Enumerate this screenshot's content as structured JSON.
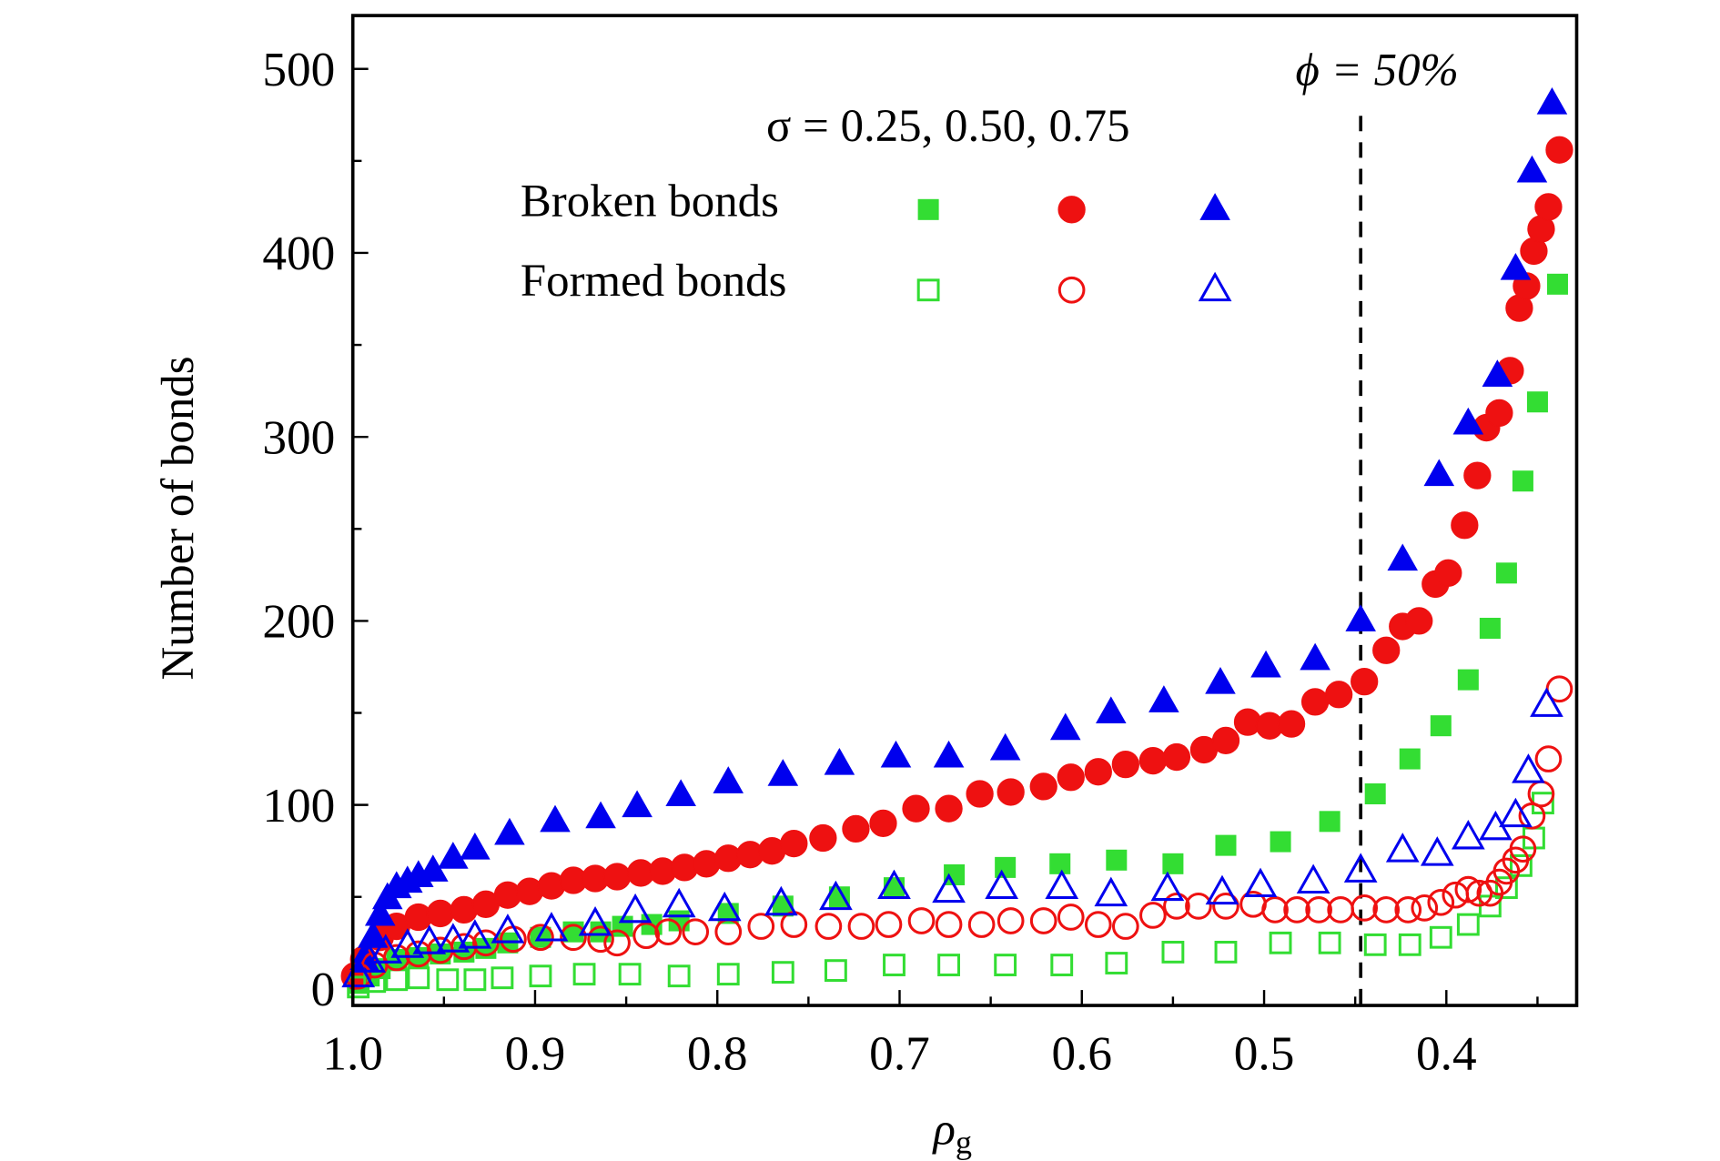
{
  "chart_data": {
    "type": "scatter",
    "ylabel": "Number of bonds",
    "xlabel": "ρ",
    "xlabel_sub": "g",
    "xlim": [
      1.0,
      0.3285
    ],
    "ylim": [
      -9,
      529
    ],
    "xticks": [
      {
        "value": 1.0,
        "label": "1.0"
      },
      0.9,
      0.8,
      0.7,
      0.6,
      0.5,
      0.4
    ],
    "yticks": [
      0,
      100,
      200,
      300,
      400,
      500
    ],
    "xminor": [
      0.95,
      0.85,
      0.75,
      0.65,
      0.55,
      0.45,
      0.35
    ],
    "yminor": [
      50,
      150,
      250,
      350,
      450
    ],
    "legend": {
      "header": "σ = 0.25, 0.50, 0.75",
      "rows": [
        "Broken bonds",
        "Formed bonds"
      ]
    },
    "annotation": {
      "text": "ϕ = 50%",
      "x": 0.447
    },
    "series": [
      {
        "marker": "square",
        "filled": true,
        "color": "#33dd33",
        "x": [
          0.997,
          0.991,
          0.985,
          0.976,
          0.964,
          0.952,
          0.939,
          0.927,
          0.915,
          0.897,
          0.879,
          0.864,
          0.852,
          0.836,
          0.821,
          0.794,
          0.764,
          0.733,
          0.703,
          0.67,
          0.642,
          0.612,
          0.581,
          0.55,
          0.521,
          0.491,
          0.464,
          0.439,
          0.42,
          0.403,
          0.388,
          0.376,
          0.367,
          0.358,
          0.35,
          0.339
        ],
        "values": [
          3,
          7,
          11,
          16,
          17,
          19,
          20,
          22,
          25,
          28,
          31,
          31,
          34,
          35,
          37,
          41,
          45,
          50,
          55,
          62,
          66,
          68,
          70,
          68,
          78,
          80,
          91,
          106,
          125,
          143,
          168,
          196,
          226,
          276,
          319,
          383
        ]
      },
      {
        "marker": "circle",
        "filled": true,
        "color": "#ee1111",
        "x": [
          0.999,
          0.994,
          0.985,
          0.976,
          0.964,
          0.952,
          0.939,
          0.927,
          0.915,
          0.903,
          0.891,
          0.879,
          0.867,
          0.855,
          0.842,
          0.83,
          0.818,
          0.806,
          0.794,
          0.782,
          0.77,
          0.758,
          0.742,
          0.724,
          0.709,
          0.691,
          0.673,
          0.656,
          0.639,
          0.621,
          0.606,
          0.591,
          0.576,
          0.561,
          0.548,
          0.533,
          0.521,
          0.509,
          0.497,
          0.485,
          0.472,
          0.459,
          0.445,
          0.433,
          0.424,
          0.415,
          0.406,
          0.399,
          0.39,
          0.383,
          0.378,
          0.371,
          0.365,
          0.36,
          0.356,
          0.352,
          0.348,
          0.344,
          0.338
        ],
        "values": [
          7,
          16,
          28,
          34,
          39,
          41,
          43,
          46,
          51,
          53,
          56,
          59,
          60,
          61,
          63,
          64,
          66,
          68,
          71,
          73,
          75,
          79,
          82,
          87,
          90,
          98,
          98,
          106,
          107,
          110,
          115,
          118,
          122,
          124,
          126,
          130,
          135,
          145,
          143,
          144,
          156,
          160,
          167,
          184,
          197,
          200,
          220,
          226,
          252,
          279,
          305,
          313,
          336,
          370,
          382,
          401,
          413,
          425,
          456
        ]
      },
      {
        "marker": "triangle",
        "filled": true,
        "color": "#0000ee",
        "x": [
          0.994,
          0.989,
          0.985,
          0.981,
          0.976,
          0.97,
          0.964,
          0.956,
          0.945,
          0.933,
          0.914,
          0.889,
          0.864,
          0.844,
          0.82,
          0.794,
          0.764,
          0.733,
          0.702,
          0.673,
          0.642,
          0.609,
          0.584,
          0.555,
          0.524,
          0.499,
          0.472,
          0.447,
          0.424,
          0.404,
          0.388,
          0.372,
          0.362,
          0.353,
          0.342
        ],
        "values": [
          16,
          28,
          40,
          49,
          55,
          58,
          61,
          64,
          71,
          76,
          84,
          91,
          93,
          99,
          105,
          112,
          116,
          122,
          126,
          126,
          130,
          141,
          150,
          156,
          166,
          175,
          179,
          200,
          233,
          279,
          307,
          333,
          391,
          444,
          481
        ]
      },
      {
        "marker": "square",
        "filled": false,
        "color": "#33dd33",
        "x": [
          0.997,
          0.988,
          0.976,
          0.964,
          0.948,
          0.933,
          0.918,
          0.897,
          0.873,
          0.848,
          0.821,
          0.794,
          0.764,
          0.735,
          0.703,
          0.673,
          0.642,
          0.611,
          0.581,
          0.55,
          0.521,
          0.491,
          0.464,
          0.439,
          0.42,
          0.403,
          0.388,
          0.376,
          0.367,
          0.359,
          0.352,
          0.347
        ],
        "values": [
          1,
          4,
          5,
          6,
          5,
          5,
          6,
          7,
          8,
          8,
          7,
          8,
          9,
          10,
          13,
          13,
          13,
          13,
          14,
          20,
          20,
          25,
          25,
          24,
          24,
          28,
          35,
          45,
          55,
          67,
          82,
          101
        ]
      },
      {
        "marker": "circle",
        "filled": false,
        "color": "#ee1111",
        "x": [
          0.997,
          0.988,
          0.976,
          0.964,
          0.952,
          0.939,
          0.927,
          0.912,
          0.897,
          0.879,
          0.864,
          0.855,
          0.839,
          0.827,
          0.812,
          0.794,
          0.776,
          0.758,
          0.739,
          0.721,
          0.706,
          0.688,
          0.673,
          0.655,
          0.639,
          0.621,
          0.606,
          0.591,
          0.576,
          0.561,
          0.548,
          0.536,
          0.521,
          0.506,
          0.494,
          0.482,
          0.47,
          0.458,
          0.445,
          0.433,
          0.421,
          0.412,
          0.403,
          0.395,
          0.388,
          0.382,
          0.376,
          0.371,
          0.367,
          0.362,
          0.358,
          0.353,
          0.348,
          0.344,
          0.338
        ],
        "values": [
          7,
          13,
          17,
          19,
          21,
          23,
          25,
          27,
          28,
          28,
          27,
          25,
          29,
          31,
          31,
          31,
          34,
          35,
          34,
          34,
          35,
          37,
          35,
          35,
          37,
          37,
          39,
          35,
          34,
          40,
          45,
          45,
          45,
          46,
          43,
          43,
          43,
          43,
          44,
          43,
          43,
          44,
          47,
          51,
          54,
          52,
          52,
          58,
          64,
          70,
          76,
          94,
          106,
          125,
          163
        ]
      },
      {
        "marker": "triangle",
        "filled": false,
        "color": "#0000ee",
        "x": [
          0.997,
          0.991,
          0.982,
          0.97,
          0.958,
          0.945,
          0.933,
          0.915,
          0.891,
          0.867,
          0.845,
          0.821,
          0.796,
          0.765,
          0.735,
          0.703,
          0.673,
          0.644,
          0.611,
          0.584,
          0.553,
          0.523,
          0.502,
          0.473,
          0.447,
          0.424,
          0.405,
          0.388,
          0.373,
          0.362,
          0.355,
          0.345
        ],
        "values": [
          7,
          15,
          20,
          23,
          25,
          26,
          28,
          31,
          32,
          35,
          42,
          45,
          43,
          46,
          49,
          55,
          53,
          55,
          55,
          51,
          54,
          52,
          56,
          58,
          64,
          75,
          73,
          82,
          87,
          94,
          118,
          154
        ]
      }
    ]
  }
}
